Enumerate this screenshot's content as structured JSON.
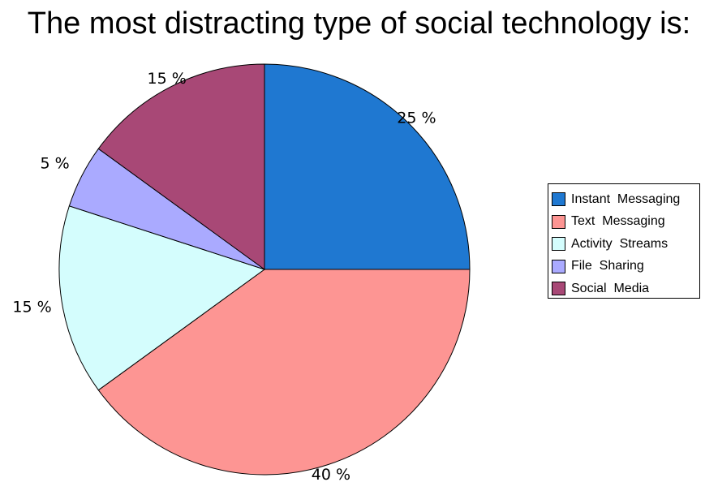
{
  "chart_data": {
    "type": "pie",
    "title": "The most distracting type of social technology is:",
    "start_angle_deg": 0,
    "direction": "clockwise",
    "legend_position": "right",
    "slices": [
      {
        "label": "Instant  Messaging",
        "value": 25,
        "value_label": "25 %",
        "color": "#1f78d1"
      },
      {
        "label": "Text  Messaging",
        "value": 40,
        "value_label": "40 %",
        "color": "#fd9593"
      },
      {
        "label": "Activity  Streams",
        "value": 15,
        "value_label": "15 %",
        "color": "#d4fdfd"
      },
      {
        "label": "File  Sharing",
        "value": 5,
        "value_label": "5 %",
        "color": "#aaaaff"
      },
      {
        "label": "Social  Media",
        "value": 15,
        "value_label": "15 %",
        "color": "#a84876"
      }
    ]
  }
}
